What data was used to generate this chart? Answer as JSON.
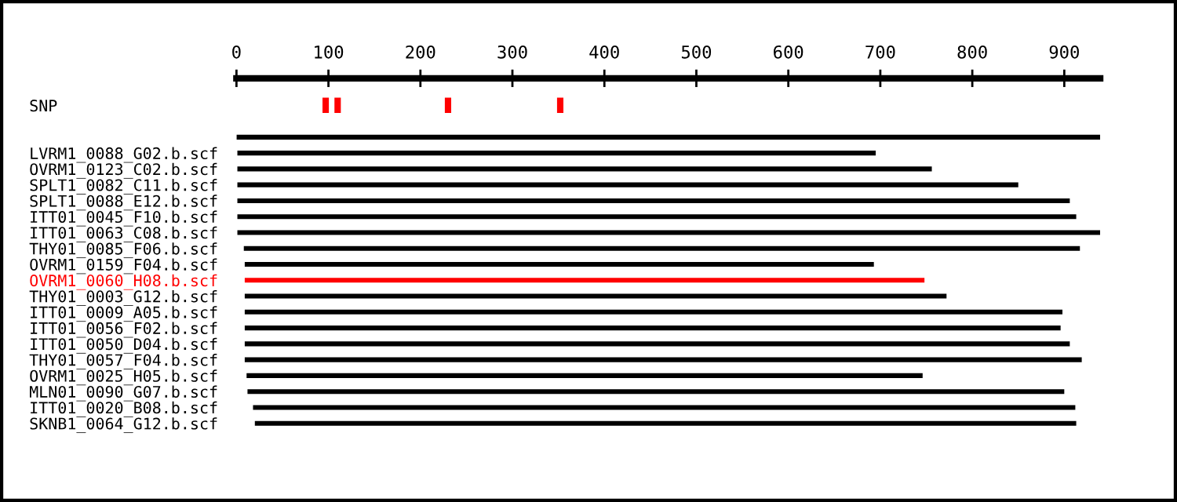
{
  "chart_data": {
    "type": "bar",
    "orientation": "horizontal",
    "categories": [
      "SNP",
      null,
      null,
      "LVRM1_0088_G02.b.scf",
      "OVRM1_0123_C02.b.scf",
      "SPLT1_0082_C11.b.scf",
      "SPLT1_0088_E12.b.scf",
      "ITT01_0045_F10.b.scf",
      "ITT01_0063_C08.b.scf",
      "THY01_0085_F06.b.scf",
      "OVRM1_0159_F04.b.scf",
      "OVRM1_0060_H08.b.scf",
      "THY01_0003_G12.b.scf",
      "ITT01_0009_A05.b.scf",
      "ITT01_0056_F02.b.scf",
      "ITT01_0050_D04.b.scf",
      "THY01_0057_F04.b.scf",
      "OVRM1_0025_H05.b.scf",
      "MLN01_0090_G07.b.scf",
      "ITT01_0020_B08.b.scf",
      "SKNB1_0064_G12.b.scf"
    ],
    "series": [
      {
        "base": [
          null,
          null,
          0,
          1,
          1,
          1,
          1,
          1,
          1,
          8,
          9,
          9,
          9,
          9,
          9,
          9,
          9,
          11,
          12,
          18,
          20
        ],
        "values": [
          null,
          null,
          939,
          694,
          755,
          849,
          905,
          912,
          938,
          909,
          684,
          739,
          763,
          889,
          887,
          897,
          910,
          735,
          888,
          894,
          893
        ],
        "colors": [
          "#000000",
          "#000000",
          "#000000",
          "#000000",
          "#000000",
          "#000000",
          "#000000",
          "#000000",
          "#000000",
          "#000000",
          "#000000",
          "#ff0000",
          "#000000",
          "#000000",
          "#000000",
          "#000000",
          "#000000",
          "#000000",
          "#000000",
          "#000000",
          "#000000"
        ]
      },
      {
        "type": "scatter",
        "values": [
          97,
          null,
          null,
          null,
          null,
          null,
          null,
          null,
          null,
          null,
          null,
          null,
          null,
          null,
          null,
          null,
          null,
          null,
          null,
          null,
          null
        ],
        "color": "#ff0000",
        "marker": "square"
      },
      {
        "type": "scatter",
        "values": [
          110,
          null,
          null,
          null,
          null,
          null,
          null,
          null,
          null,
          null,
          null,
          null,
          null,
          null,
          null,
          null,
          null,
          null,
          null,
          null,
          null
        ],
        "color": "#ff0000",
        "marker": "square"
      },
      {
        "type": "scatter",
        "values": [
          230,
          null,
          null,
          null,
          null,
          null,
          null,
          null,
          null,
          null,
          null,
          null,
          null,
          null,
          null,
          null,
          null,
          null,
          null,
          null,
          null
        ],
        "color": "#ff0000",
        "marker": "square"
      },
      {
        "type": "scatter",
        "values": [
          352,
          null,
          null,
          null,
          null,
          null,
          null,
          null,
          null,
          null,
          null,
          null,
          null,
          null,
          null,
          null,
          null,
          null,
          null,
          null,
          null
        ],
        "color": "#ff0000",
        "marker": "square"
      }
    ],
    "xlim": [
      0,
      939
    ],
    "xticks": [
      0,
      100,
      200,
      300,
      400,
      500,
      600,
      700,
      800,
      900
    ],
    "grid": false,
    "legend": false
  }
}
